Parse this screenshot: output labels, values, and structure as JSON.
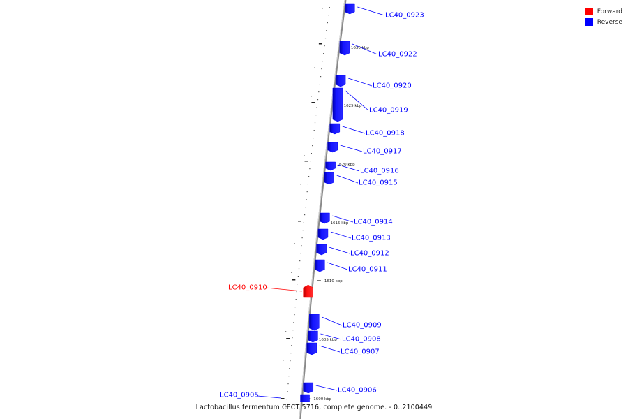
{
  "legend": {
    "items": [
      {
        "label": "Forward",
        "color": "#ff0000"
      },
      {
        "label": "Reverse",
        "color": "#0000ff"
      }
    ]
  },
  "footer": {
    "caption": "Lactobacillus fermentum CECT 5716, complete genome. - 0..2100449"
  },
  "colors": {
    "forward": "#ff0000",
    "reverse": "#0000ff",
    "backbone": "#888888"
  },
  "chart_data": {
    "type": "genome-map",
    "axis_unit": "kbp",
    "ticks": [
      {
        "label": "1630 kbp",
        "value": 1630
      },
      {
        "label": "1625 kbp",
        "value": 1625
      },
      {
        "label": "1620 kbp",
        "value": 1620
      },
      {
        "label": "1615 kbp",
        "value": 1615
      },
      {
        "label": "1610 kbp",
        "value": 1610
      },
      {
        "label": "1605 kbp",
        "value": 1605
      },
      {
        "label": "1600 kbp",
        "value": 1600
      }
    ],
    "genes": [
      {
        "label": "LC40_0923",
        "strand": "reverse"
      },
      {
        "label": "LC40_0922",
        "strand": "reverse"
      },
      {
        "label": "LC40_0920",
        "strand": "reverse"
      },
      {
        "label": "LC40_0919",
        "strand": "reverse"
      },
      {
        "label": "LC40_0918",
        "strand": "reverse"
      },
      {
        "label": "LC40_0917",
        "strand": "reverse"
      },
      {
        "label": "LC40_0916",
        "strand": "reverse"
      },
      {
        "label": "LC40_0915",
        "strand": "reverse"
      },
      {
        "label": "LC40_0914",
        "strand": "reverse"
      },
      {
        "label": "LC40_0913",
        "strand": "reverse"
      },
      {
        "label": "LC40_0912",
        "strand": "reverse"
      },
      {
        "label": "LC40_0911",
        "strand": "reverse"
      },
      {
        "label": "LC40_0910",
        "strand": "forward"
      },
      {
        "label": "LC40_0909",
        "strand": "reverse"
      },
      {
        "label": "LC40_0908",
        "strand": "reverse"
      },
      {
        "label": "LC40_0907",
        "strand": "reverse"
      },
      {
        "label": "LC40_0906",
        "strand": "reverse"
      },
      {
        "label": "LC40_0905",
        "strand": "reverse"
      }
    ]
  }
}
